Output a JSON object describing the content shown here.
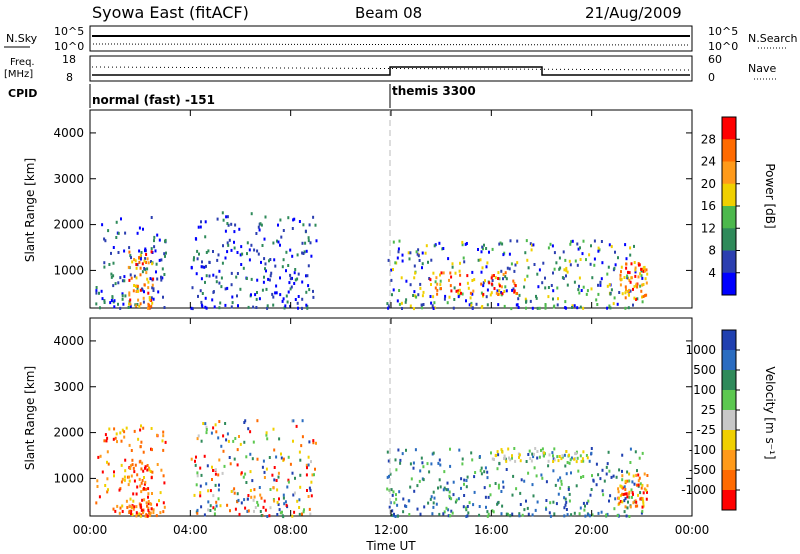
{
  "header": {
    "title": "Syowa East (fitACF)",
    "beam": "Beam 08",
    "date": "21/Aug/2009"
  },
  "status_panel": {
    "nsky_label": "N.Sky",
    "nsearch_label": "N.Search",
    "nsky_ticks": [
      "10^5",
      "10^0"
    ],
    "nsearch_ticks": [
      "10^5",
      "10^0"
    ],
    "freq_label": "Freq.",
    "freq_unit": "[MHz]",
    "freq_ticks": [
      "18",
      "8"
    ],
    "nave_label": "Nave",
    "nave_ticks": [
      "60",
      "0"
    ],
    "cpid_label": "CPID",
    "cpid_modes": [
      {
        "label": "normal (fast) -151",
        "start_hour": 0
      },
      {
        "label": "themis 3300",
        "start_hour": 12
      }
    ],
    "line_styles": {
      "nsearch": "dotted",
      "nave": "dotted"
    }
  },
  "x_axis": {
    "label": "Time UT",
    "ticks": [
      "00:00",
      "04:00",
      "08:00",
      "12:00",
      "16:00",
      "20:00",
      "00:00"
    ],
    "range_hours": [
      0,
      24
    ]
  },
  "y_axis": {
    "label": "Slant Range [km]",
    "ticks": [
      "1000",
      "2000",
      "3000",
      "4000"
    ],
    "range_km": [
      180,
      4500
    ]
  },
  "power_colorbar": {
    "label": "Power [dB]",
    "ticks": [
      "4",
      "8",
      "12",
      "16",
      "20",
      "24",
      "28"
    ],
    "colors": [
      "#0000ff",
      "#2c3fb0",
      "#2f8a5a",
      "#4cb84c",
      "#f0d000",
      "#ff9a1a",
      "#ff6a00",
      "#ff0000"
    ]
  },
  "velocity_colorbar": {
    "label": "Velocity [m s⁻¹]",
    "ticks": [
      "1000",
      "500",
      "100",
      "25",
      "-25",
      "-100",
      "-500",
      "-1000"
    ],
    "colors": [
      "#2040b0",
      "#2a6cc0",
      "#2f8a5a",
      "#5cc850",
      "#c8c8c8",
      "#f0d000",
      "#ff9a1a",
      "#ff6a00",
      "#ff0000"
    ]
  },
  "chart_data": [
    {
      "type": "heatmap",
      "panel": "power",
      "x_hours_range": [
        0,
        24
      ],
      "y_km_range": [
        180,
        4500
      ],
      "scatter_regions": [
        {
          "t": [
            0.2,
            3.0
          ],
          "r": [
            200,
            2200
          ],
          "level": "low"
        },
        {
          "t": [
            1.5,
            2.5
          ],
          "r": [
            200,
            1500
          ],
          "level": "high"
        },
        {
          "t": [
            4.0,
            9.0
          ],
          "r": [
            200,
            2300
          ],
          "level": "low"
        },
        {
          "t": [
            11.8,
            22.0
          ],
          "r": [
            200,
            1700
          ],
          "level": "mid"
        },
        {
          "t": [
            13.5,
            17.0
          ],
          "r": [
            500,
            1000
          ],
          "level": "high"
        },
        {
          "t": [
            21.0,
            22.2
          ],
          "r": [
            400,
            1200
          ],
          "level": "high"
        }
      ],
      "colorbar": "power_colorbar"
    },
    {
      "type": "heatmap",
      "panel": "velocity",
      "x_hours_range": [
        0,
        24
      ],
      "y_km_range": [
        180,
        4500
      ],
      "scatter_regions": [
        {
          "t": [
            0.2,
            3.0
          ],
          "r": [
            200,
            2200
          ],
          "level": "negative"
        },
        {
          "t": [
            1.5,
            2.5
          ],
          "r": [
            200,
            1400
          ],
          "level": "strong-negative"
        },
        {
          "t": [
            4.0,
            9.0
          ],
          "r": [
            200,
            2300
          ],
          "level": "mixed"
        },
        {
          "t": [
            11.8,
            22.0
          ],
          "r": [
            200,
            1700
          ],
          "level": "positive"
        },
        {
          "t": [
            16.0,
            20.0
          ],
          "r": [
            1400,
            1700
          ],
          "level": "near-zero"
        },
        {
          "t": [
            21.0,
            22.2
          ],
          "r": [
            400,
            1200
          ],
          "level": "negative"
        }
      ],
      "colorbar": "velocity_colorbar"
    }
  ]
}
